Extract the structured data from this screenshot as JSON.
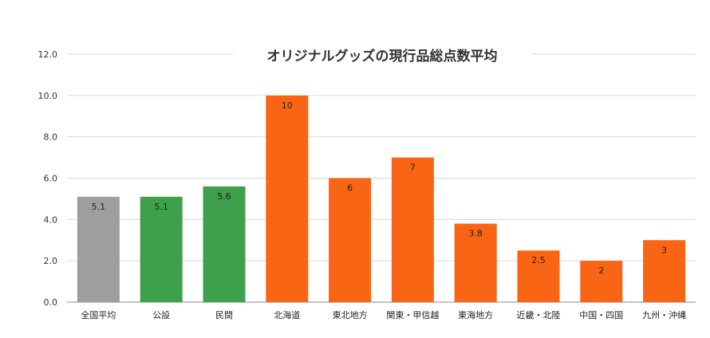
{
  "chart_data": {
    "type": "bar",
    "title": "オリジナルグッズの現行品総点数平均",
    "xlabel": "",
    "ylabel": "",
    "ylim": [
      0,
      12
    ],
    "yticks": [
      "0.0",
      "2.0",
      "4.0",
      "6.0",
      "8.0",
      "10.0",
      "12.0"
    ],
    "grid": true,
    "legend": "none",
    "categories": [
      "全国平均",
      "公設",
      "民間",
      "北海道",
      "東北地方",
      "関東・甲信越",
      "東海地方",
      "近畿・北陸",
      "中国・四国",
      "九州・沖縄"
    ],
    "values": [
      5.1,
      5.1,
      5.6,
      10,
      6,
      7,
      3.8,
      2.5,
      2,
      3
    ],
    "value_labels": [
      "5.1",
      "5.1",
      "5.6",
      "10",
      "6",
      "7",
      "3.8",
      "2.5",
      "2",
      "3"
    ],
    "colors": [
      "#9e9e9e",
      "#3ea04b",
      "#3ea04b",
      "#f96514",
      "#f96514",
      "#f96514",
      "#f96514",
      "#f96514",
      "#f96514",
      "#f96514"
    ]
  }
}
